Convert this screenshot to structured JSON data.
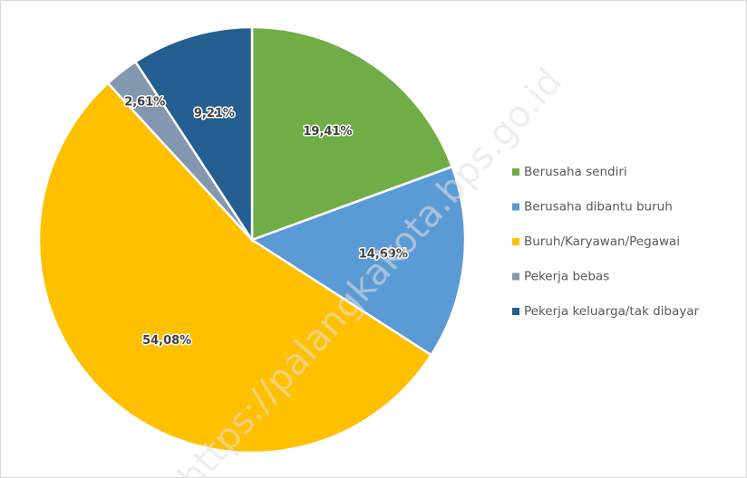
{
  "chart_data": {
    "type": "pie",
    "categories": [
      "Berusaha sendiri",
      "Berusaha dibantu buruh",
      "Buruh/Karyawan/Pegawai",
      "Pekerja bebas",
      "Pekerja keluarga/tak dibayar"
    ],
    "values": [
      19.41,
      14.69,
      54.08,
      2.61,
      9.21
    ],
    "value_labels": [
      "19,41%",
      "14,69%",
      "54,08%",
      "2,61%",
      "9,21%"
    ],
    "colors": [
      "#70ad47",
      "#5b9bd5",
      "#ffc000",
      "#8497b0",
      "#255e91"
    ],
    "legend": "right",
    "watermark": "https://palangkakota.bps.go.id"
  }
}
